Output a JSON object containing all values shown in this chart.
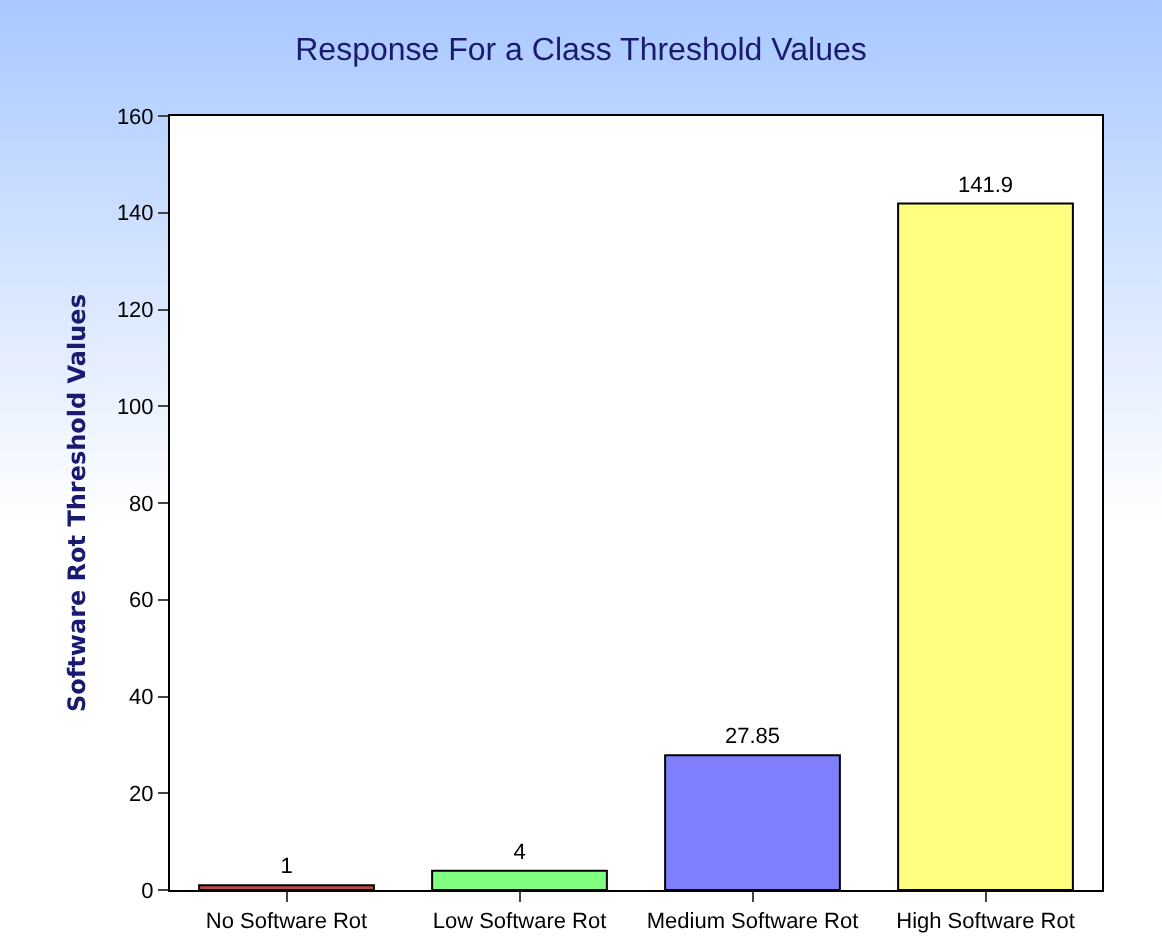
{
  "chart_data": {
    "type": "bar",
    "title": "Response For a Class Threshold Values",
    "ylabel": "Software Rot Threshold Values",
    "categories": [
      "No Software Rot",
      "Low Software Rot",
      "Medium Software Rot",
      "High Software Rot"
    ],
    "values": [
      1,
      4,
      27.85,
      141.9
    ],
    "colors": [
      "#c04848",
      "#80ff80",
      "#8080ff",
      "#ffff80"
    ],
    "ylim": [
      0,
      160
    ],
    "yticks": [
      0,
      20,
      40,
      60,
      80,
      100,
      120,
      140,
      160
    ],
    "grid": false,
    "data_labels": true
  }
}
